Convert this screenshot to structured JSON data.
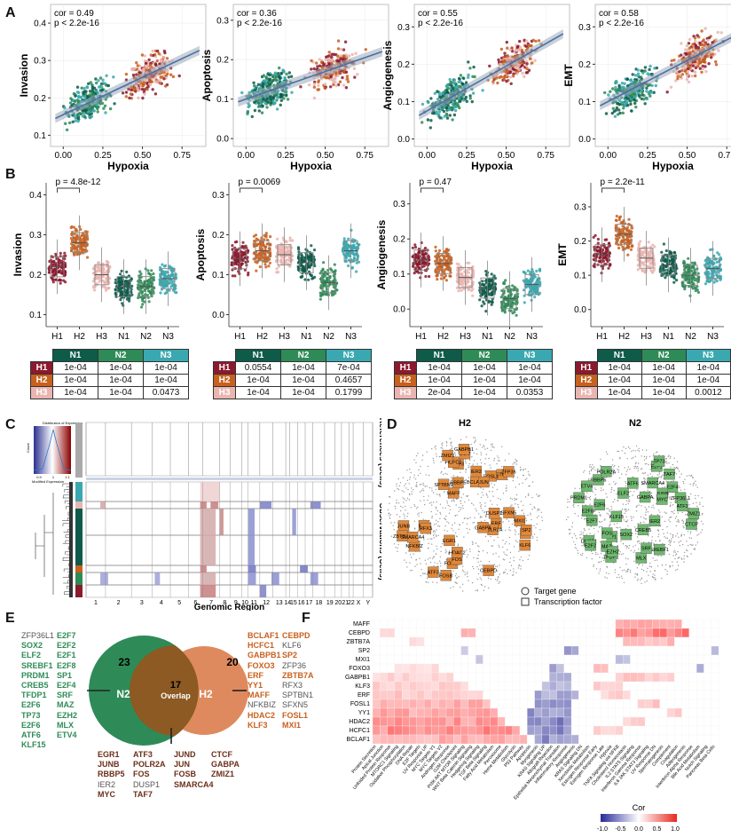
{
  "colors": {
    "H1": "#8b1a2e",
    "H2": "#c8601e",
    "H3": "#eab5b0",
    "N1": "#0e5b4a",
    "N2": "#2e8b57",
    "N3": "#3aa8b0",
    "orange": "#e0883a",
    "green": "#6fb86f"
  },
  "panelA": {
    "label": "A",
    "xlabel": "Hypoxia",
    "xticks": [
      "0.00",
      "0.25",
      "0.50",
      "0.75"
    ],
    "plots": [
      {
        "ylabel": "Invasion",
        "cor": "cor = 0.49",
        "p": "p < 2.2e-16",
        "yticks": [
          "0.1",
          "0.2",
          "0.3",
          "0.4"
        ],
        "ylim": [
          0.07,
          0.45
        ],
        "slope": 0.2,
        "intercept": 0.155
      },
      {
        "ylabel": "Apoptosis",
        "cor": "cor = 0.36",
        "p": "p < 2.2e-16",
        "yticks": [
          "0.0",
          "0.1",
          "0.2",
          "0.3"
        ],
        "ylim": [
          -0.02,
          0.34
        ],
        "slope": 0.14,
        "intercept": 0.1
      },
      {
        "ylabel": "Angiogenesis",
        "cor": "cor = 0.55",
        "p": "p < 2.2e-16",
        "yticks": [
          "0.0",
          "0.1",
          "0.2",
          "0.3"
        ],
        "ylim": [
          -0.02,
          0.36
        ],
        "slope": 0.24,
        "intercept": 0.075
      },
      {
        "ylabel": "EMT",
        "cor": "cor = 0.58",
        "p": "p < 2.2e-16",
        "yticks": [
          "0.0",
          "0.1",
          "0.2",
          "0.3"
        ],
        "ylim": [
          -0.02,
          0.36
        ],
        "slope": 0.22,
        "intercept": 0.1
      }
    ]
  },
  "panelB": {
    "label": "B",
    "groups": [
      "H1",
      "H2",
      "H3",
      "N1",
      "N2",
      "N3"
    ],
    "plots": [
      {
        "ylabel": "Invasion",
        "pval": "p = 4.8e-12",
        "yticks": [
          "0.1",
          "0.2",
          "0.3",
          "0.4"
        ],
        "ylim": [
          0.07,
          0.43
        ],
        "medians": [
          0.22,
          0.28,
          0.2,
          0.17,
          0.17,
          0.19
        ],
        "table": {
          "cols": [
            "N1",
            "N2",
            "N3"
          ],
          "rows": [
            [
              "H1",
              "1e-04",
              "1e-04",
              "1e-04"
            ],
            [
              "H2",
              "1e-04",
              "1e-04",
              "1e-04"
            ],
            [
              "H3",
              "1e-04",
              "1e-04",
              "0.0473"
            ]
          ]
        }
      },
      {
        "ylabel": "Apoptosis",
        "pval": "p = 0.0069",
        "yticks": [
          "0.0",
          "0.1",
          "0.2",
          "0.3"
        ],
        "ylim": [
          -0.03,
          0.33
        ],
        "medians": [
          0.14,
          0.16,
          0.15,
          0.13,
          0.08,
          0.16
        ],
        "table": {
          "cols": [
            "N1",
            "N2",
            "N3"
          ],
          "rows": [
            [
              "H1",
              "0.0554",
              "1e-04",
              "7e-04"
            ],
            [
              "H2",
              "1e-04",
              "1e-04",
              "0.4657"
            ],
            [
              "H3",
              "1e-04",
              "1e-04",
              "0.1799"
            ]
          ]
        }
      },
      {
        "ylabel": "Angiogenesis",
        "pval": "p = 0.47",
        "yticks": [
          "0.0",
          "0.1",
          "0.2",
          "0.3"
        ],
        "ylim": [
          -0.05,
          0.36
        ],
        "medians": [
          0.14,
          0.13,
          0.09,
          0.06,
          0.03,
          0.07
        ],
        "table": {
          "cols": [
            "N1",
            "N2",
            "N3"
          ],
          "rows": [
            [
              "H1",
              "1e-04",
              "1e-04",
              "1e-04"
            ],
            [
              "H2",
              "1e-04",
              "1e-04",
              "1e-04"
            ],
            [
              "H3",
              "2e-04",
              "1e-04",
              "0.0353"
            ]
          ]
        }
      },
      {
        "ylabel": "EMT",
        "pval": "p = 2.2e-11",
        "yticks": [
          "0.0",
          "0.1",
          "0.2",
          "0.3"
        ],
        "ylim": [
          -0.05,
          0.37
        ],
        "medians": [
          0.16,
          0.22,
          0.15,
          0.13,
          0.1,
          0.12
        ],
        "table": {
          "cols": [
            "N1",
            "N2",
            "N3"
          ],
          "rows": [
            [
              "H1",
              "1e-04",
              "1e-04",
              "1e-04"
            ],
            [
              "H2",
              "1e-04",
              "1e-04",
              "1e-04"
            ],
            [
              "H3",
              "1e-04",
              "1e-04",
              "0.0012"
            ]
          ]
        }
      }
    ]
  },
  "panelC": {
    "label": "C",
    "legend_title": "Distribution of Expression",
    "legend_ylabel": "Count",
    "legend_xlabel": "Modified Expression",
    "legend_ticks": [
      "0.9",
      "1",
      "1.1"
    ],
    "references_label": "References (Cells)",
    "observations_label": "Observations (Cells)",
    "xlabel": "Genomic Region",
    "chromosomes": [
      "1",
      "2",
      "3",
      "4",
      "5",
      "6",
      "7",
      "8",
      "9",
      "10",
      "11",
      "12",
      "13",
      "14",
      "15",
      "16",
      "17",
      "18",
      "19",
      "20",
      "21",
      "22",
      "X",
      "Y"
    ]
  },
  "panelD": {
    "label": "D",
    "h2_title": "H2",
    "n2_title": "N2",
    "h2_genes": [
      "FOSB",
      "KLF3",
      "HDAC2",
      "ERF",
      "MYC",
      "YY1",
      "POLR2A",
      "CEBPD",
      "HCFC1",
      "CTCF",
      "FOSL1",
      "NFKBIZ",
      "BCLAF1",
      "TAF7",
      "RFX3",
      "ZFP36",
      "GABPA",
      "MAFF",
      "MXI1",
      "JUNB",
      "EGR1",
      "ZBTB7A",
      "FOXO3",
      "SPTBN1",
      "JUN",
      "DUSP1",
      "IER2",
      "ATF3",
      "FOS",
      "ZMIZ1",
      "KLF6",
      "RBBP5",
      "SFXN5",
      "SMARCA4",
      "SP2",
      "GABPB1"
    ],
    "n2_genes": [
      "RBBP5",
      "CREB5",
      "ZFP36L1",
      "SREBF1",
      "PRDM1",
      "TFDP1",
      "TAF7",
      "ATF3",
      "MAZ",
      "DUSP1",
      "ZMIZ1",
      "E2F4",
      "SOX2",
      "JUNB",
      "MLX",
      "SP1",
      "FOS",
      "KLF15",
      "E2F1",
      "E2F8",
      "ELF2",
      "E2F2",
      "E2F7",
      "MYC",
      "GABPA",
      "TP73",
      "ATF6",
      "ETV4",
      "EZH2",
      "E2F6",
      "SRF",
      "POLR2A",
      "SMARCA4",
      "CTCF",
      "IER2"
    ],
    "legend_target": "Target gene",
    "legend_tf": "Transcription factor"
  },
  "panelE": {
    "label": "E",
    "n2_count": "23",
    "overlap_count": "17",
    "h2_count": "20",
    "n2_label": "N2",
    "overlap_label": "Overlap",
    "h2_label": "H2",
    "n2_col1": [
      "ZFP36L1",
      "SOX2",
      "ELF2",
      "SREBF1",
      "PRDM1",
      "CREB5",
      "TFDP1",
      "E2F6",
      "TP73",
      "E2F6",
      "ATF6",
      "KLF15"
    ],
    "n2_col1_bold": [
      false,
      true,
      true,
      true,
      true,
      true,
      true,
      true,
      true,
      true,
      true,
      true
    ],
    "n2_col2": [
      "E2F7",
      "E2F2",
      "E2F1",
      "E2F8",
      "SP1",
      "E2F4",
      "SRF",
      "MAZ",
      "EZH2",
      "MLX",
      "ETV4"
    ],
    "h2_col1": [
      "BCLAF1",
      "HCFC1",
      "GABPB1",
      "FOXO3",
      "ERF",
      "YY1",
      "MAFF",
      "NFKBIZ",
      "HDAC2",
      "KLF3"
    ],
    "h2_col1_bold": [
      true,
      true,
      true,
      true,
      true,
      true,
      true,
      false,
      true,
      true
    ],
    "h2_col2": [
      "CEBPD",
      "KLF6",
      "SP2",
      "ZFP36",
      "ZBTB7A",
      "RFX3",
      "SPTBN1",
      "SFXN5",
      "FOSL1",
      "MXI1"
    ],
    "h2_col2_bold": [
      true,
      false,
      true,
      false,
      true,
      false,
      false,
      false,
      true,
      true
    ],
    "ov_col1": [
      "EGR1",
      "JUNB",
      "RBBP5",
      "IER2",
      "MYC"
    ],
    "ov_col1_bold": [
      true,
      true,
      true,
      false,
      true
    ],
    "ov_col2": [
      "ATF3",
      "POLR2A",
      "FOS",
      "DUSP1",
      "TAF7"
    ],
    "ov_col2_bold": [
      true,
      true,
      true,
      false,
      true
    ],
    "ov_col3": [
      "JUND",
      "JUN",
      "FOSB",
      "SMARCA4"
    ],
    "ov_col4": [
      "CTCF",
      "GABPA",
      "ZMIZ1"
    ]
  },
  "panelF": {
    "label": "F",
    "chart_data": {
      "type": "heatmap",
      "rows": [
        "MAFF",
        "CEBPD",
        "ZBTB7A",
        "SP2",
        "MXI1",
        "FOXO3",
        "GABPB1",
        "KLF3",
        "ERF",
        "FOSL1",
        "YY1",
        "HDAC2",
        "HCFC1",
        "BCLAF1"
      ],
      "columns": [
        "Protein Secretion",
        "Apical Junction",
        "Unfolded Protein Response",
        "MTORC1 Signaling",
        "Oxidative Phosphorylation",
        "DNA Repair",
        "E2F Targets",
        "UV Response UP",
        "MYC Targets V1",
        "MYC Targets V2",
        "Androgen Response",
        "G2M Checkpoint",
        "PI3K AKT MTOR Signaling",
        "WNT Beta Catenin Signaling",
        "Hedgehog Signaling",
        "TGF Beta Signaling",
        "Fatty Acid Metabolism",
        "Peroxisome",
        "Heme Metabolism",
        "Glycolysis",
        "P53 Pathway",
        "Apoptosis",
        "Myogenesis",
        "KRAS Signaling UP",
        "Allograft Rejection",
        "Epithelial Mesenchymal Transition",
        "Inflammatory Response",
        "Angiogenesis",
        "KRAS Signaling DN",
        "Xenobiotic Metabolism",
        "Estrogen Response Early",
        "Estrogen Response Late",
        "Hypoxia",
        "TNFA Signaling via NFKB",
        "Cholesterol Homeostasis",
        "IL2 STAT5 Signaling",
        "Interferon Gamma Response",
        "IL6 JAK STAT3 Signaling",
        "UV Response DN",
        "Spermatogenesis",
        "Complement",
        "Coagulation",
        "Adipogenesis",
        "Interferon Alpha Response",
        "Bile Acid Metabolism",
        "Notch Signaling",
        "Pancreas Beta Cells"
      ],
      "legend_title": "Cor",
      "legend_ticks": [
        "-1.0",
        "-0.5",
        "0.0",
        "0.5",
        "1.0"
      ],
      "scale": [
        -1,
        1
      ],
      "patterns": {
        "MAFF": [
          [
            33,
            41,
            0.35
          ]
        ],
        "CEBPD": [
          [
            1,
            2,
            0.2
          ],
          [
            12,
            13,
            0.3
          ],
          [
            33,
            42,
            0.55
          ]
        ],
        "ZBTB7A": [
          [
            5,
            6,
            0.15
          ],
          [
            34,
            40,
            0.3
          ]
        ],
        "SP2": [
          [
            12,
            12,
            -0.3
          ],
          [
            26,
            27,
            -0.4
          ],
          [
            46,
            46,
            -0.3
          ]
        ],
        "MXI1": [
          [
            14,
            14,
            -0.3
          ],
          [
            33,
            34,
            -0.25
          ]
        ],
        "FOXO3": [
          [
            3,
            8,
            0.15
          ],
          [
            24,
            25,
            -0.4
          ],
          [
            30,
            31,
            0.3
          ],
          [
            44,
            44,
            -0.3
          ]
        ],
        "GABPB1": [
          [
            0,
            10,
            0.2
          ],
          [
            24,
            26,
            -0.3
          ],
          [
            33,
            40,
            0.25
          ]
        ],
        "KLF3": [
          [
            0,
            12,
            0.22
          ],
          [
            23,
            26,
            -0.35
          ],
          [
            30,
            33,
            0.2
          ]
        ],
        "ERF": [
          [
            0,
            14,
            0.25
          ],
          [
            22,
            27,
            -0.4
          ],
          [
            31,
            34,
            0.2
          ]
        ],
        "FOSL1": [
          [
            0,
            15,
            0.35
          ],
          [
            22,
            26,
            -0.45
          ],
          [
            36,
            38,
            0.25
          ]
        ],
        "YY1": [
          [
            0,
            16,
            0.4
          ],
          [
            21,
            26,
            -0.5
          ],
          [
            40,
            41,
            0.2
          ]
        ],
        "HDAC2": [
          [
            0,
            17,
            0.45
          ],
          [
            21,
            26,
            -0.55
          ],
          [
            34,
            36,
            0.2
          ]
        ],
        "HCFC1": [
          [
            0,
            19,
            0.5
          ],
          [
            21,
            26,
            -0.55
          ],
          [
            30,
            33,
            0.2
          ]
        ],
        "BCLAF1": [
          [
            0,
            20,
            0.35
          ],
          [
            22,
            27,
            -0.5
          ]
        ]
      }
    }
  }
}
